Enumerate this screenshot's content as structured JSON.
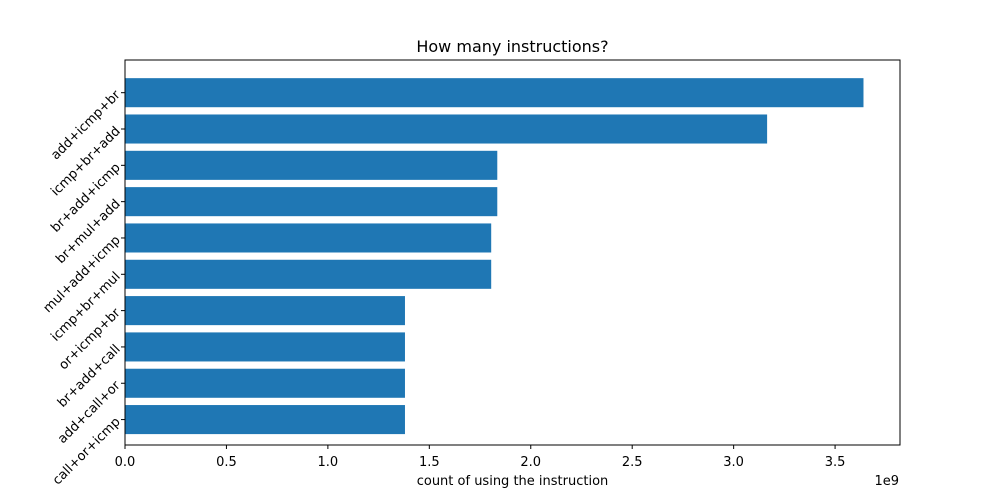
{
  "chart_data": {
    "type": "bar",
    "orientation": "horizontal",
    "title": "How many instructions?",
    "xlabel": "count of using the instruction",
    "ylabel": "",
    "x_offset_label": "1e9",
    "xlim": [
      0,
      3.82
    ],
    "x_ticks": [
      0.0,
      0.5,
      1.0,
      1.5,
      2.0,
      2.5,
      3.0,
      3.5
    ],
    "x_tick_labels": [
      "0.0",
      "0.5",
      "1.0",
      "1.5",
      "2.0",
      "2.5",
      "3.0",
      "3.5"
    ],
    "categories": [
      "add+icmp+br",
      "icmp+br+add",
      "br+add+icmp",
      "br+mul+add",
      "mul+add+icmp",
      "icmp+br+mul",
      "or+icmp+br",
      "br+add+call",
      "add+call+or",
      "call+or+icmp"
    ],
    "values": [
      3.64,
      3.165,
      1.835,
      1.835,
      1.805,
      1.805,
      1.38,
      1.38,
      1.38,
      1.38
    ],
    "bar_color": "#1f77b4",
    "grid": false,
    "legend": "none"
  }
}
